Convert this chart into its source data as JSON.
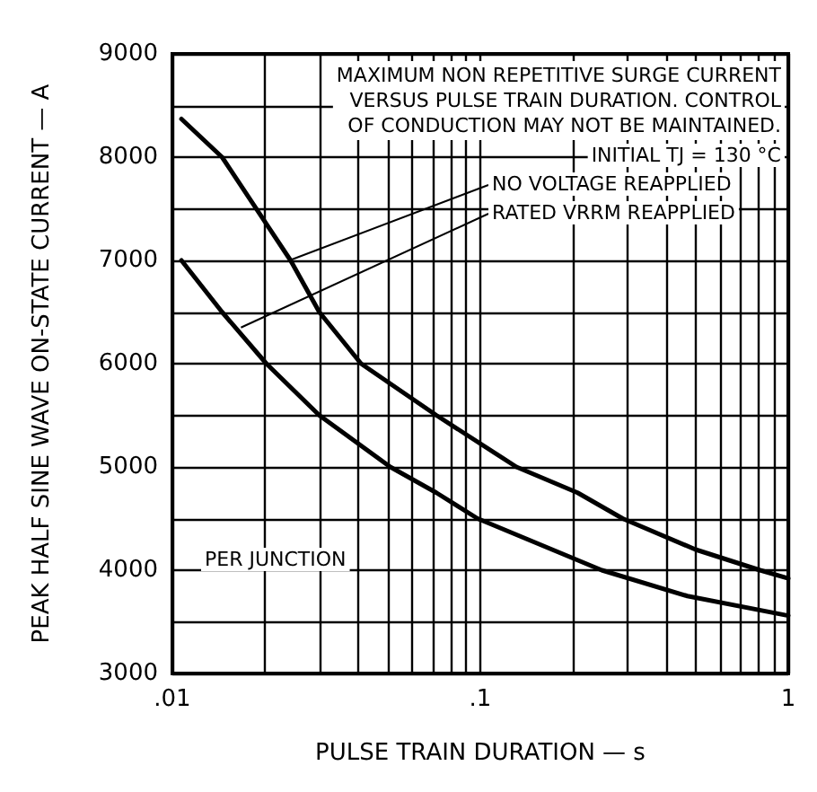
{
  "chart_data": {
    "type": "line",
    "xlabel": "PULSE TRAIN DURATION — s",
    "ylabel": "PEAK HALF SINE WAVE ON-STATE CURRENT — A",
    "log": "x",
    "xlim": [
      0.01,
      1
    ],
    "xticks": [
      {
        "value": 0.01,
        "label": ".01"
      },
      {
        "value": 0.02,
        "label": null
      },
      {
        "value": 0.03,
        "label": null
      },
      {
        "value": 0.04,
        "label": null
      },
      {
        "value": 0.05,
        "label": null
      },
      {
        "value": 0.06,
        "label": null
      },
      {
        "value": 0.07,
        "label": null
      },
      {
        "value": 0.08,
        "label": null
      },
      {
        "value": 0.09,
        "label": null
      },
      {
        "value": 0.1,
        "label": ".1"
      },
      {
        "value": 0.2,
        "label": null
      },
      {
        "value": 0.3,
        "label": null
      },
      {
        "value": 0.4,
        "label": null
      },
      {
        "value": 0.5,
        "label": null
      },
      {
        "value": 0.6,
        "label": null
      },
      {
        "value": 0.7,
        "label": null
      },
      {
        "value": 0.8,
        "label": null
      },
      {
        "value": 0.9,
        "label": null
      },
      {
        "value": 1,
        "label": "1"
      }
    ],
    "ylim": [
      3000,
      9000
    ],
    "yticks": [
      3000,
      {
        "value": 3500,
        "label": null
      },
      4000,
      {
        "value": 4500,
        "label": null
      },
      5000,
      {
        "value": 5500,
        "label": null
      },
      6000,
      {
        "value": 6500,
        "label": null
      },
      7000,
      {
        "value": 7500,
        "label": null
      },
      8000,
      {
        "value": 8500,
        "label": null
      },
      9000
    ],
    "grid": true,
    "legend": false,
    "marker": "none",
    "line_style": "solid",
    "series": [
      {
        "color": "#000000",
        "x": [
          0.0107,
          0.0145,
          0.0242,
          0.03,
          0.041,
          0.072,
          0.131,
          0.207,
          0.29,
          0.5,
          0.81,
          1
        ],
        "values": [
          8370,
          8000,
          7000,
          6500,
          6000,
          5500,
          5000,
          4750,
          4500,
          4200,
          4000,
          3920
        ]
      },
      {
        "color": "#000000",
        "x": [
          0.0107,
          0.0145,
          0.0202,
          0.03,
          0.051,
          0.072,
          0.098,
          0.248,
          0.47,
          1
        ],
        "values": [
          7000,
          6500,
          6000,
          5500,
          5000,
          4750,
          4500,
          4000,
          3750,
          3560
        ]
      }
    ],
    "annotations": [
      "MAXIMUM NON REPETITIVE SURGE CURRENT\nVERSUS PULSE TRAIN DURATION. CONTROL\nOF CONDUCTION MAY NOT BE MAINTAINED.",
      "INITIAL TJ = 130 °C",
      {
        "text": "NO VOLTAGE REAPPLIED",
        "x": 0.024,
        "y": 7000
      },
      {
        "text": "RATED VRRM REAPPLIED",
        "x": 0.0167,
        "y": 6350
      },
      "PER JUNCTION"
    ]
  }
}
